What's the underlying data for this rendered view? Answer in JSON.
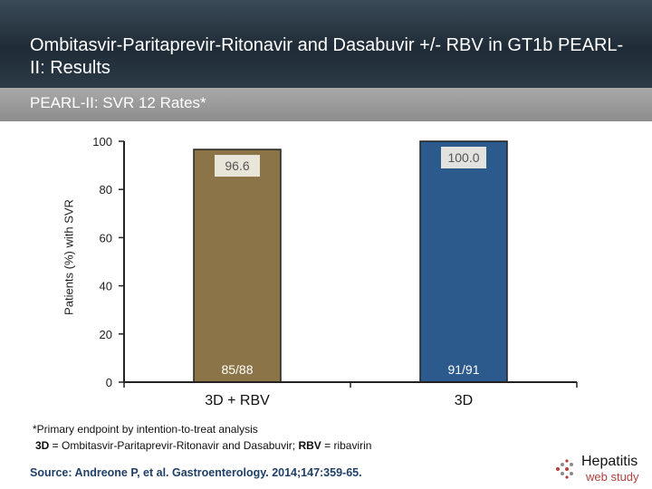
{
  "header": {
    "title": "Ombitasvir-Paritaprevir-Ritonavir and Dasabuvir +/- RBV in GT1b PEARL-II: Results"
  },
  "subheader": {
    "label": "PEARL-II: SVR 12 Rates*"
  },
  "chart_data": {
    "type": "bar",
    "title": "",
    "xlabel": "",
    "ylabel": "Patients (%) with SVR",
    "ylim": [
      0,
      100
    ],
    "yticks": [
      0,
      20,
      40,
      60,
      80,
      100
    ],
    "grid": false,
    "categories": [
      "3D + RBV",
      "3D"
    ],
    "values": [
      96.6,
      100.0
    ],
    "value_labels": [
      "96.6",
      "100.0"
    ],
    "count_labels": [
      "85/88",
      "91/91"
    ],
    "bar_colors": [
      "#8b7447",
      "#2d5a8c"
    ]
  },
  "footnotes": {
    "line1": "*Primary endpoint by intention-to-treat analysis",
    "line2_abbr1": "3D",
    "line2_def1": " = Ombitasvir-Paritaprevir-Ritonavir and Dasabuvir; ",
    "line2_abbr2": "RBV",
    "line2_def2": " = ribavirin"
  },
  "source": "Source: Andreone P, et al. Gastroenterology. 2014;147:359-65.",
  "logo": {
    "line1": "Hepatitis",
    "line2": "web study"
  }
}
